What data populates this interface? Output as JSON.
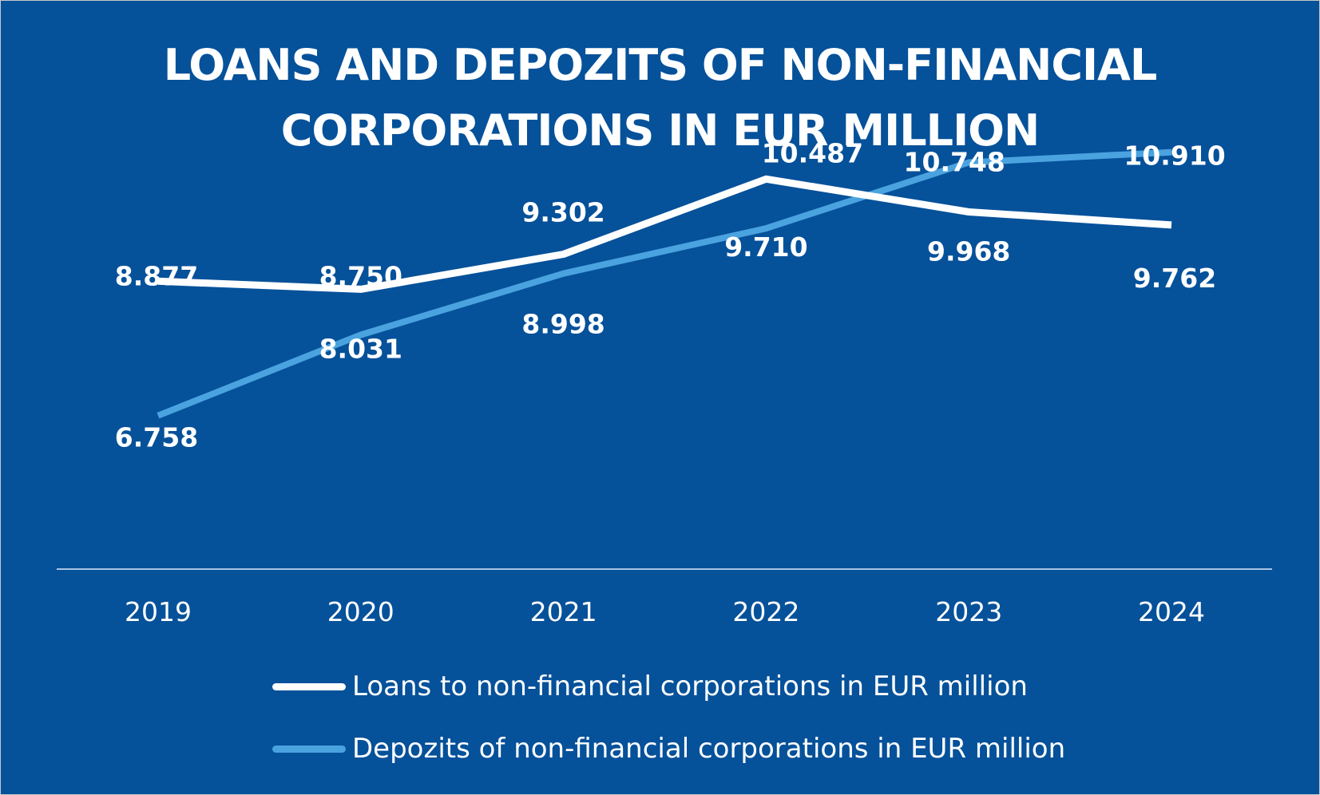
{
  "chart_data": {
    "type": "line",
    "title": "LOANS AND DEPOZITS OF NON-FINANCIAL\nCORPORATIONS IN EUR MILLION",
    "categories": [
      "2019",
      "2020",
      "2021",
      "2022",
      "2023",
      "2024"
    ],
    "series": [
      {
        "name": "Loans to non-financial corporations in EUR million",
        "color": "#ffffff",
        "values": [
          8877,
          8750,
          9302,
          10487,
          9968,
          9762
        ],
        "labels": [
          "8.877",
          "8.750",
          "9.302",
          "10.487",
          "9.968",
          "9.762"
        ]
      },
      {
        "name": "Depozits of non-financial corporations in EUR million",
        "color": "#4aa3df",
        "values": [
          6758,
          8031,
          8998,
          9710,
          10748,
          10910
        ],
        "labels": [
          "6.758",
          "8.031",
          "8.998",
          "9.710",
          "10.748",
          "10.910"
        ]
      }
    ],
    "legend_position": "bottom",
    "grid": false
  },
  "colors": {
    "background": "#05519a",
    "axis": "#a9c4e4"
  }
}
